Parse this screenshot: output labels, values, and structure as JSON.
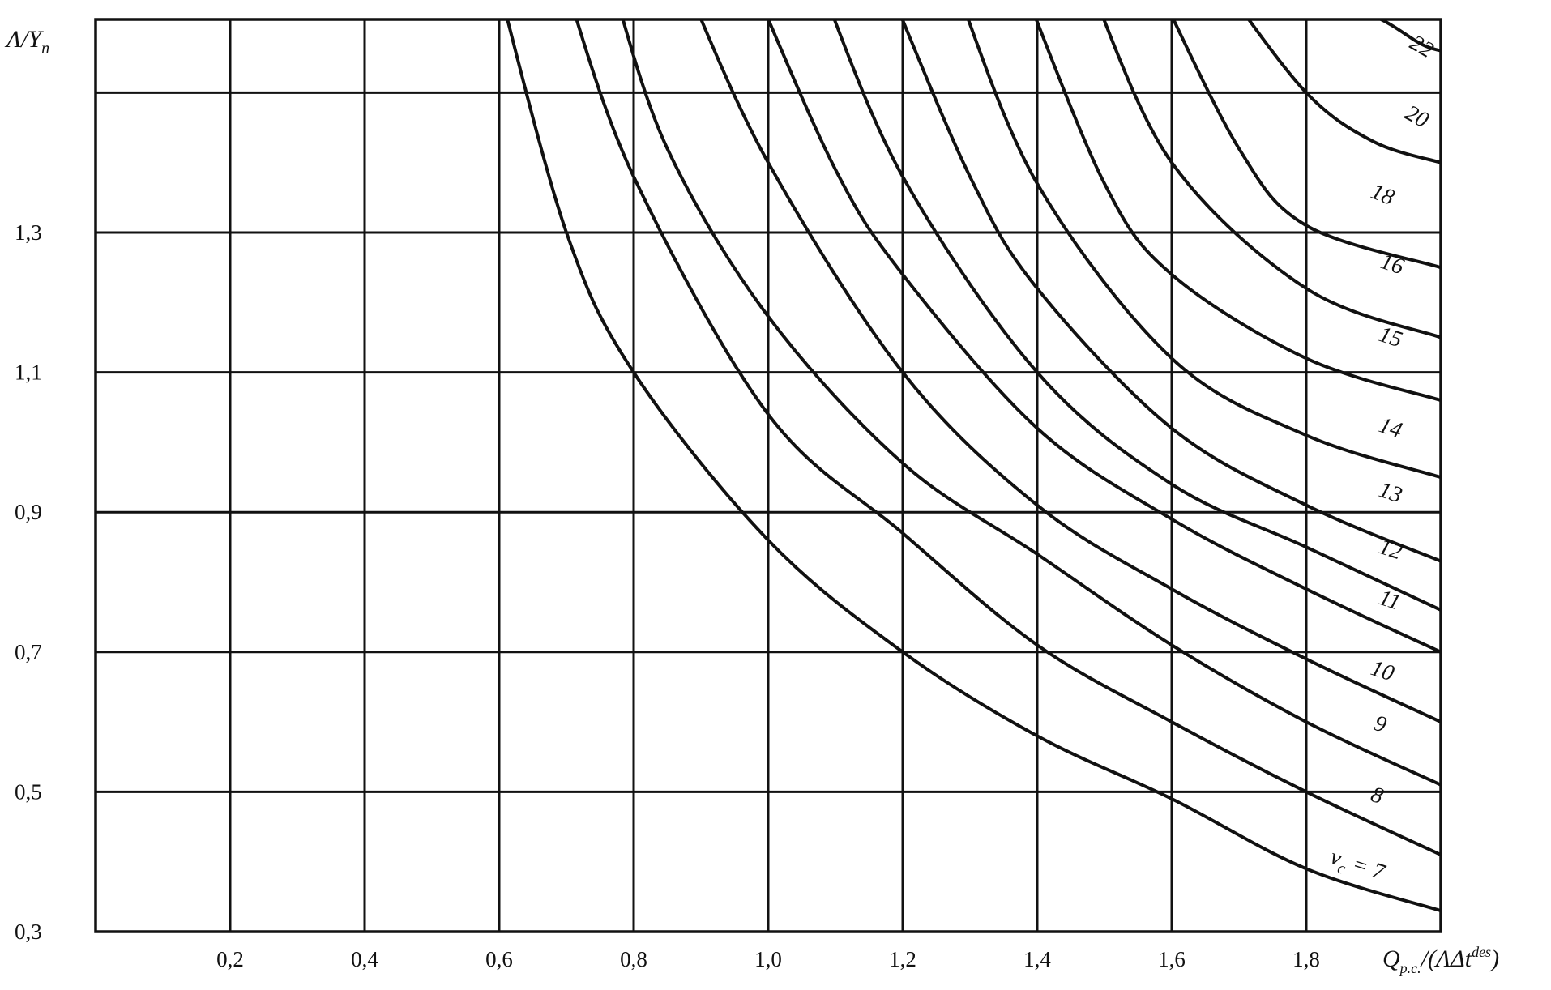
{
  "chart_data": {
    "type": "line",
    "title": "",
    "xlabel": "Q_{p.c.}/(ΛΔt^{des})",
    "ylabel": "Λ/Y_n",
    "xlim": [
      0,
      2.0
    ],
    "ylim": [
      0.3,
      1.65
    ],
    "grid": true,
    "x_ticks": [
      "0,2",
      "0,4",
      "0,6",
      "0,8",
      "1,0",
      "1,2",
      "1,4",
      "1,6",
      "1,8"
    ],
    "x_tick_values": [
      0.2,
      0.4,
      0.6,
      0.8,
      1.0,
      1.2,
      1.4,
      1.6,
      1.8
    ],
    "y_ticks": [
      "0,3",
      "0,5",
      "0,7",
      "0,9",
      "1,1",
      "1,3"
    ],
    "y_tick_values": [
      0.3,
      0.5,
      0.7,
      0.9,
      1.1,
      1.3
    ],
    "series": [
      {
        "label": "v_c = 7",
        "x": [
          0.6,
          0.7,
          0.8,
          1.0,
          1.2,
          1.4,
          1.6,
          1.8,
          2.0
        ],
        "y": [
          1.65,
          1.3,
          1.1,
          0.86,
          0.7,
          0.58,
          0.49,
          0.39,
          0.33
        ]
      },
      {
        "label": "8",
        "x": [
          0.7,
          0.8,
          1.0,
          1.2,
          1.4,
          1.6,
          1.8,
          2.0
        ],
        "y": [
          1.65,
          1.38,
          1.04,
          0.87,
          0.71,
          0.6,
          0.5,
          0.41
        ]
      },
      {
        "label": "9",
        "x": [
          0.77,
          0.85,
          1.0,
          1.2,
          1.4,
          1.6,
          1.8,
          2.0
        ],
        "y": [
          1.65,
          1.42,
          1.18,
          0.97,
          0.84,
          0.71,
          0.6,
          0.51
        ]
      },
      {
        "label": "10",
        "x": [
          0.88,
          1.0,
          1.2,
          1.4,
          1.6,
          1.8,
          2.0
        ],
        "y": [
          1.65,
          1.4,
          1.1,
          0.91,
          0.79,
          0.69,
          0.6
        ]
      },
      {
        "label": "11",
        "x": [
          0.98,
          1.1,
          1.2,
          1.4,
          1.6,
          1.8,
          2.0
        ],
        "y": [
          1.65,
          1.39,
          1.24,
          1.02,
          0.89,
          0.79,
          0.7
        ]
      },
      {
        "label": "12",
        "x": [
          1.08,
          1.2,
          1.4,
          1.6,
          1.8,
          2.0
        ],
        "y": [
          1.65,
          1.38,
          1.1,
          0.94,
          0.85,
          0.76
        ]
      },
      {
        "label": "13",
        "x": [
          1.18,
          1.3,
          1.4,
          1.6,
          1.8,
          2.0
        ],
        "y": [
          1.65,
          1.38,
          1.22,
          1.02,
          0.91,
          0.83
        ]
      },
      {
        "label": "14",
        "x": [
          1.28,
          1.4,
          1.6,
          1.8,
          2.0
        ],
        "y": [
          1.65,
          1.37,
          1.12,
          1.01,
          0.95
        ]
      },
      {
        "label": "15",
        "x": [
          1.38,
          1.5,
          1.6,
          1.8,
          2.0
        ],
        "y": [
          1.65,
          1.37,
          1.24,
          1.12,
          1.06
        ]
      },
      {
        "label": "16",
        "x": [
          1.48,
          1.6,
          1.8,
          2.0
        ],
        "y": [
          1.65,
          1.4,
          1.22,
          1.15
        ]
      },
      {
        "label": "18",
        "x": [
          1.58,
          1.7,
          1.8,
          2.0
        ],
        "y": [
          1.65,
          1.42,
          1.31,
          1.25
        ]
      },
      {
        "label": "20",
        "x": [
          1.68,
          1.8,
          1.9,
          2.0
        ],
        "y": [
          1.65,
          1.5,
          1.43,
          1.4
        ]
      },
      {
        "label": "22",
        "x": [
          1.78,
          1.9,
          1.97,
          2.0
        ],
        "y": [
          1.65,
          1.61,
          1.57,
          1.56
        ]
      }
    ]
  }
}
